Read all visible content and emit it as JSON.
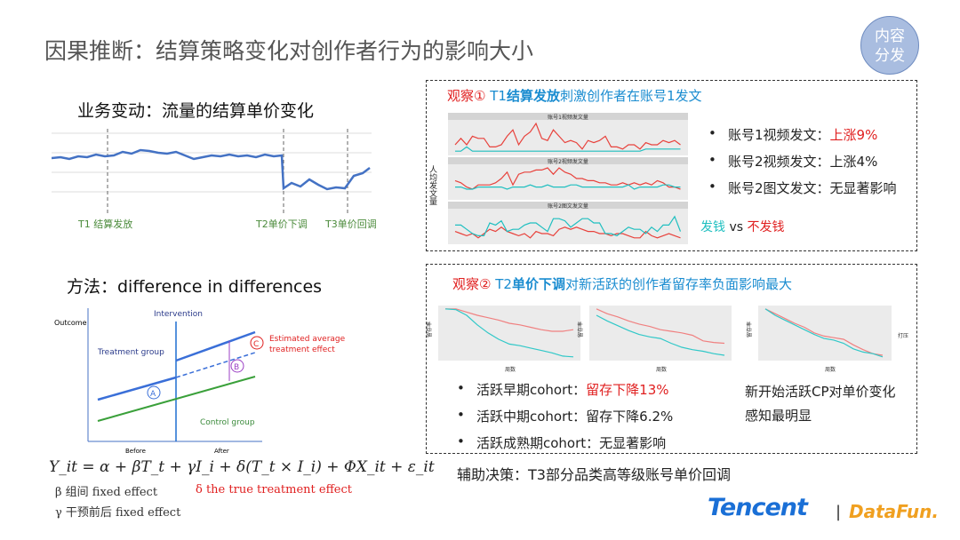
{
  "title": "因果推断：结算策略变化对创作者行为的影响大小",
  "badge": [
    "内容",
    "分发"
  ],
  "left": {
    "biz_title": "业务变动：流量的结算单价变化",
    "markers": [
      "T1 结算发放",
      "T2单价下调",
      "T3单价回调"
    ],
    "method_title": "方法：difference in differences",
    "did": {
      "outcome": "Outcome",
      "intervention": "Intervention",
      "treatment": "Treatment group",
      "control": "Control group",
      "estimated": "Estimated average",
      "estimated2": "treatment effect",
      "before": "Before",
      "after": "After",
      "a": "A",
      "b": "B",
      "c": "C"
    },
    "formula": "Y_it = α + βT_t + γI_i + δ(T_t × I_i) + ΦX_it + ε_it",
    "beta": "β 组间 fixed effect",
    "gamma": "γ 干预前后 fixed effect",
    "delta": "δ the true treatment effect"
  },
  "obs1": {
    "prefix": "观察①",
    "t": "T1",
    "bold": "结算发放",
    "rest": "刺激创作者在账号1发文",
    "ylabel": "人均发文量",
    "panels": [
      "账号1视频发文量",
      "账号2视频发文量",
      "账号2图文发文量"
    ],
    "bullets": [
      {
        "label": "账号1视频发文：",
        "value": "上涨9%"
      },
      {
        "label": "账号2视频发文：",
        "value": "上涨4%"
      },
      {
        "label": "账号2图文发文：",
        "value": "无显著影响"
      }
    ],
    "legend_pay": "发钱",
    "legend_vs": " vs ",
    "legend_nopay": "不发钱",
    "colors": {
      "pay": "#1fbfc0",
      "nopay": "#e8423c"
    }
  },
  "obs2": {
    "prefix": "观察②",
    "t": "T2",
    "bold": "单价下调",
    "rest": "对新活跃的创作者留存率负面影响最大",
    "xlabel": "周数",
    "ylabel": "留存率",
    "legend_title": "打压",
    "bullets": [
      {
        "label": "活跃早期cohort：",
        "value": "留存下降13%",
        "red": true
      },
      {
        "label": "活跃中期cohort：",
        "value": "留存下降6.2%"
      },
      {
        "label": "活跃成熟期cohort：",
        "value": "无显著影响"
      }
    ],
    "note": [
      "新开始活跃CP对单价变化",
      "感知最明显"
    ],
    "decision": "辅助决策：T3部分品类高等级账号单价回调"
  },
  "footer": {
    "tencent": "Tencent",
    "sep": "|",
    "datafun": "DataFun."
  }
}
